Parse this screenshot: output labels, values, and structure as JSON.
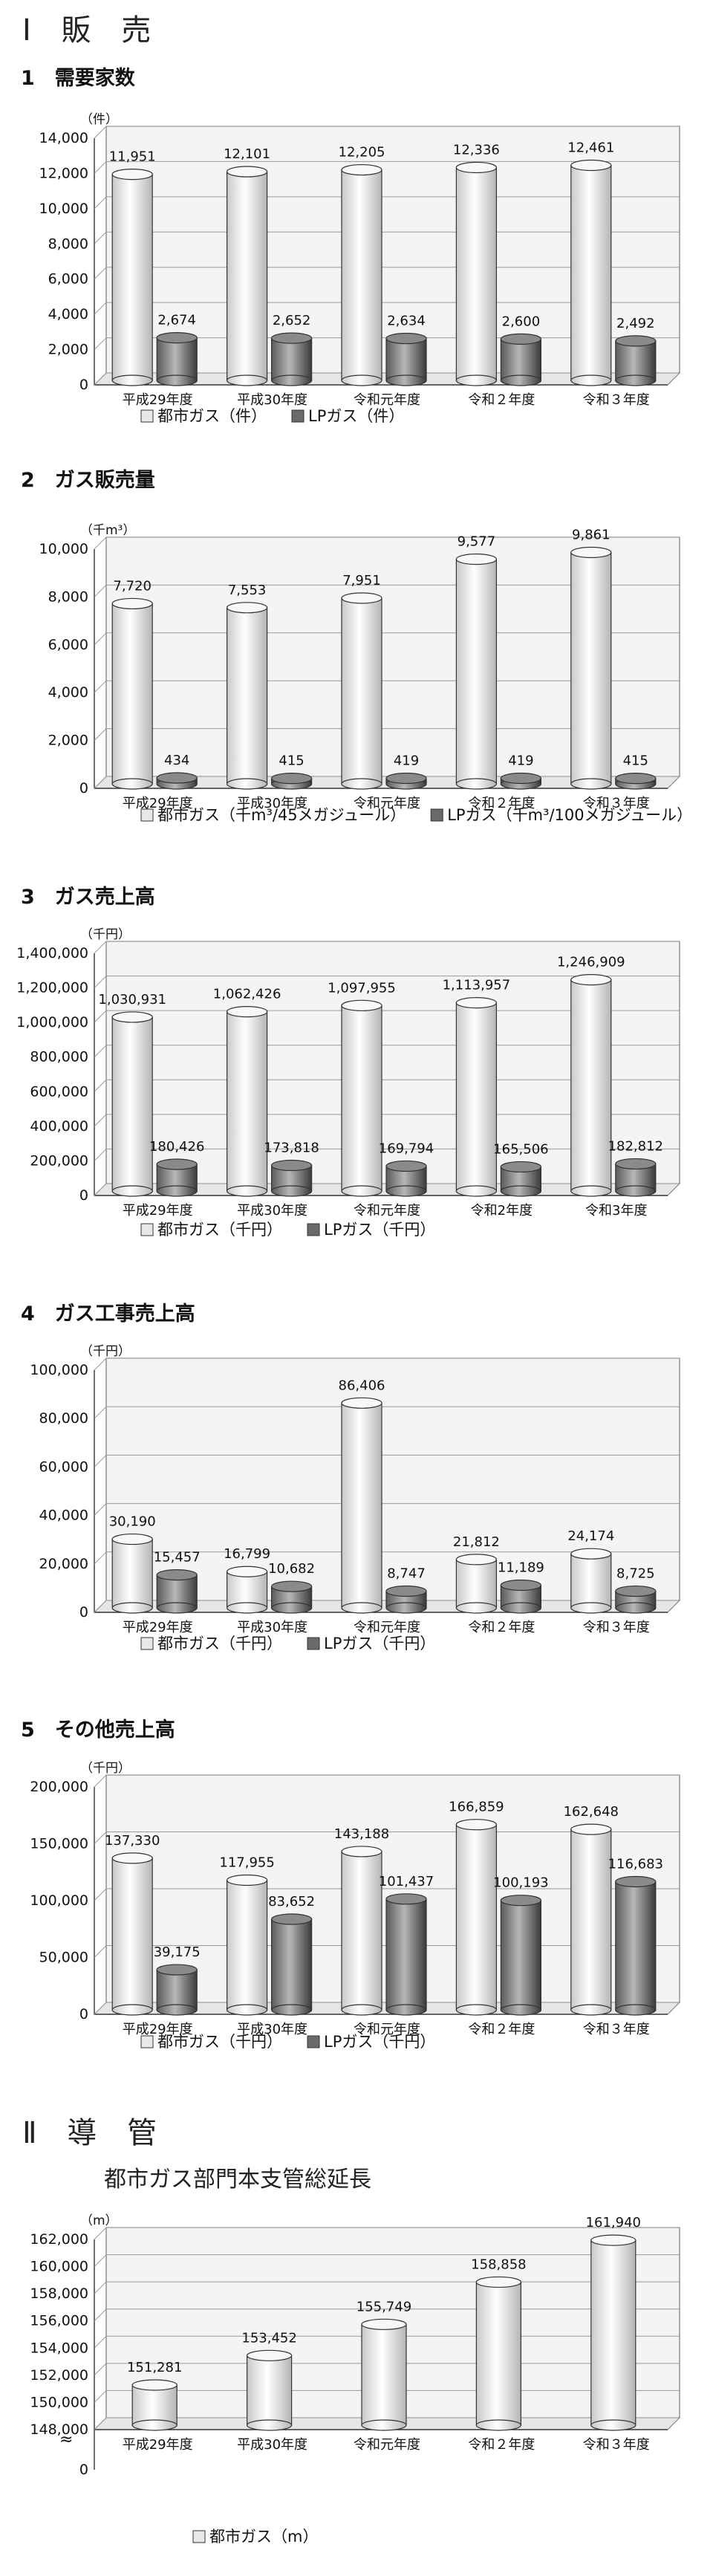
{
  "sections": {
    "s1": {
      "part": "Ⅰ 販 売",
      "title": "1　需要家数"
    },
    "s2": {
      "title": "2　ガス販売量"
    },
    "s3": {
      "title": "3　ガス売上高"
    },
    "s4": {
      "title": "4　ガス工事売上高"
    },
    "s5": {
      "title": "5　その他売上高"
    },
    "s6": {
      "part": "Ⅱ 導 管",
      "subtitle": "都市ガス部門本支管総延長"
    }
  },
  "chart_data": [
    {
      "id": "c1",
      "type": "bar",
      "unit": "（件）",
      "categories": [
        "平成29年度",
        "平成30年度",
        "令和元年度",
        "令和２年度",
        "令和３年度"
      ],
      "series": [
        {
          "name": "都市ガス（件）",
          "values": [
            11951,
            12101,
            12205,
            12336,
            12461
          ],
          "labels": [
            "11,951",
            "12,101",
            "12,205",
            "12,336",
            "12,461"
          ]
        },
        {
          "name": "LPガス（件）",
          "values": [
            2674,
            2652,
            2634,
            2600,
            2492
          ],
          "labels": [
            "2,674",
            "2,652",
            "2,634",
            "2,600",
            "2,492"
          ]
        }
      ],
      "yticks": [
        "0",
        "2,000",
        "4,000",
        "6,000",
        "8,000",
        "10,000",
        "12,000",
        "14,000"
      ],
      "ylim": [
        0,
        14000
      ],
      "grid": true,
      "legend": "bottom-left"
    },
    {
      "id": "c2",
      "type": "bar",
      "unit": "（千m³）",
      "categories": [
        "平成29年度",
        "平成30年度",
        "令和元年度",
        "令和２年度",
        "令和３年度"
      ],
      "series": [
        {
          "name": "都市ガス（千m³/45メガジュール）",
          "values": [
            7720,
            7553,
            7951,
            9577,
            9861
          ],
          "labels": [
            "7,720",
            "7,553",
            "7,951",
            "9,577",
            "9,861"
          ]
        },
        {
          "name": "LPガス（千m³/100メガジュール）",
          "values": [
            434,
            415,
            419,
            419,
            415
          ],
          "labels": [
            "434",
            "415",
            "419",
            "419",
            "415"
          ]
        }
      ],
      "yticks": [
        "0",
        "2,000",
        "4,000",
        "6,000",
        "8,000",
        "10,000"
      ],
      "ylim": [
        0,
        10000
      ],
      "grid": true,
      "legend": "bottom-left"
    },
    {
      "id": "c3",
      "type": "bar",
      "unit": "（千円）",
      "categories": [
        "平成29年度",
        "平成30年度",
        "令和元年度",
        "令和2年度",
        "令和3年度"
      ],
      "series": [
        {
          "name": "都市ガス（千円）",
          "values": [
            1030931,
            1062426,
            1097955,
            1113957,
            1246909
          ],
          "labels": [
            "1,030,931",
            "1,062,426",
            "1,097,955",
            "1,113,957",
            "1,246,909"
          ]
        },
        {
          "name": "LPガス（千円）",
          "values": [
            180426,
            173818,
            169794,
            165506,
            182812
          ],
          "labels": [
            "180,426",
            "173,818",
            "169,794",
            "165,506",
            "182,812"
          ]
        }
      ],
      "yticks": [
        "0",
        "200,000",
        "400,000",
        "600,000",
        "800,000",
        "1,000,000",
        "1,200,000",
        "1,400,000"
      ],
      "ylim": [
        0,
        1400000
      ],
      "grid": true,
      "legend": "bottom-left"
    },
    {
      "id": "c4",
      "type": "bar",
      "unit": "（千円）",
      "categories": [
        "平成29年度",
        "平成30年度",
        "令和元年度",
        "令和２年度",
        "令和３年度"
      ],
      "series": [
        {
          "name": "都市ガス（千円）",
          "values": [
            30190,
            16799,
            86406,
            21812,
            24174
          ],
          "labels": [
            "30,190",
            "16,799",
            "86,406",
            "21,812",
            "24,174"
          ]
        },
        {
          "name": "LPガス（千円）",
          "values": [
            15457,
            10682,
            8747,
            11189,
            8725
          ],
          "labels": [
            "15,457",
            "10,682",
            "8,747",
            "11,189",
            "8,725"
          ]
        }
      ],
      "yticks": [
        "0",
        "20,000",
        "40,000",
        "60,000",
        "80,000",
        "100,000"
      ],
      "ylim": [
        0,
        100000
      ],
      "grid": true,
      "legend": "bottom-left"
    },
    {
      "id": "c5",
      "type": "bar",
      "unit": "（千円）",
      "categories": [
        "平成29年度",
        "平成30年度",
        "令和元年度",
        "令和２年度",
        "令和３年度"
      ],
      "series": [
        {
          "name": "都市ガス（千円）",
          "values": [
            137330,
            117955,
            143188,
            166859,
            162648
          ],
          "labels": [
            "137,330",
            "117,955",
            "143,188",
            "166,859",
            "162,648"
          ]
        },
        {
          "name": "LPガス（千円）",
          "values": [
            39175,
            83652,
            101437,
            100193,
            116683
          ],
          "labels": [
            "39,175",
            "83,652",
            "101,437",
            "100,193",
            "116,683"
          ]
        }
      ],
      "yticks": [
        "0",
        "50,000",
        "100,000",
        "150,000",
        "200,000"
      ],
      "ylim": [
        0,
        200000
      ],
      "grid": true,
      "legend": "bottom-left"
    },
    {
      "id": "c6",
      "type": "bar",
      "unit": "（m）",
      "categories": [
        "平成29年度",
        "平成30年度",
        "令和元年度",
        "令和２年度",
        "令和３年度"
      ],
      "series": [
        {
          "name": "都市ガス（m）",
          "values": [
            151281,
            153452,
            155749,
            158858,
            161940
          ],
          "labels": [
            "151,281",
            "153,452",
            "155,749",
            "158,858",
            "161,940"
          ]
        }
      ],
      "yticks": [
        "0",
        "148,000",
        "150,000",
        "152,000",
        "154,000",
        "156,000",
        "158,000",
        "160,000",
        "162,000"
      ],
      "ylim": [
        148000,
        162000
      ],
      "axis_break": true,
      "grid": true,
      "legend": "bottom-center"
    }
  ]
}
